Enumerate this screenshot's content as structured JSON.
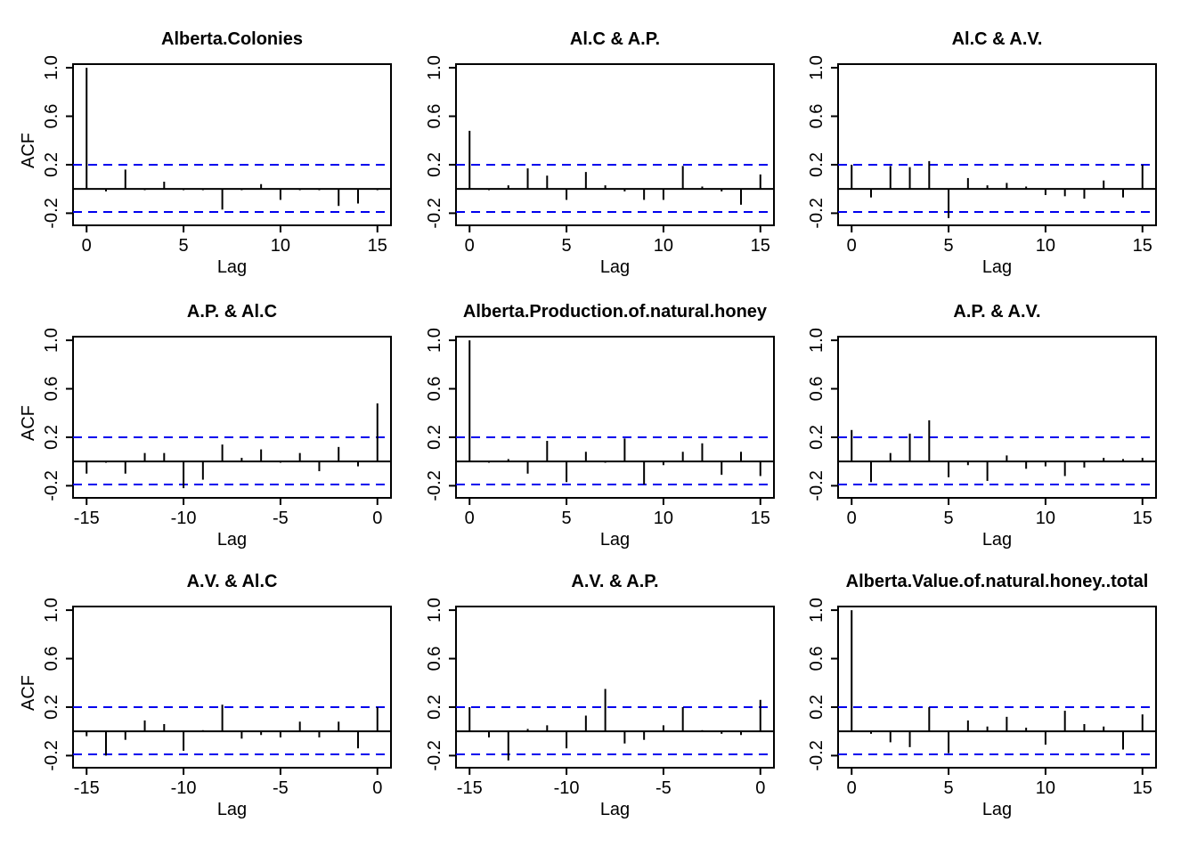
{
  "chart_data": [
    {
      "type": "bar",
      "title": "Alberta.Colonies",
      "xlabel": "Lag",
      "ylabel": "ACF",
      "xlim": [
        -0.7,
        15.7
      ],
      "ylim": [
        -0.3,
        1.03
      ],
      "x": [
        0,
        1,
        2,
        3,
        4,
        5,
        6,
        7,
        8,
        9,
        10,
        11,
        12,
        13,
        14,
        15
      ],
      "values": [
        1.0,
        -0.02,
        0.16,
        -0.01,
        0.06,
        -0.01,
        -0.01,
        -0.17,
        -0.01,
        0.04,
        -0.09,
        -0.01,
        -0.01,
        -0.14,
        -0.12,
        -0.01
      ],
      "ci": [
        0.2,
        -0.19
      ],
      "xticks": [
        "0",
        "5",
        "10",
        "15"
      ],
      "yticks": [
        "-0.2",
        "0.2",
        "0.6",
        "1.0"
      ]
    },
    {
      "type": "bar",
      "title": "Al.C & A.P.",
      "xlabel": "Lag",
      "ylabel": "",
      "xlim": [
        -0.7,
        15.7
      ],
      "ylim": [
        -0.3,
        1.03
      ],
      "x": [
        0,
        1,
        2,
        3,
        4,
        5,
        6,
        7,
        8,
        9,
        10,
        11,
        12,
        13,
        14,
        15
      ],
      "values": [
        0.48,
        -0.01,
        0.03,
        0.17,
        0.11,
        -0.09,
        0.14,
        0.03,
        -0.02,
        -0.09,
        -0.09,
        0.19,
        0.02,
        -0.02,
        -0.13,
        0.12
      ],
      "ci": [
        0.2,
        -0.19
      ],
      "xticks": [
        "0",
        "5",
        "10",
        "15"
      ],
      "yticks": [
        "-0.2",
        "0.2",
        "0.6",
        "1.0"
      ]
    },
    {
      "type": "bar",
      "title": "Al.C & A.V.",
      "xlabel": "Lag",
      "ylabel": "",
      "xlim": [
        -0.7,
        15.7
      ],
      "ylim": [
        -0.3,
        1.03
      ],
      "x": [
        0,
        1,
        2,
        3,
        4,
        5,
        6,
        7,
        8,
        9,
        10,
        11,
        12,
        13,
        14,
        15
      ],
      "values": [
        0.2,
        -0.07,
        0.19,
        0.18,
        0.23,
        -0.24,
        0.09,
        0.03,
        0.05,
        0.02,
        -0.05,
        -0.06,
        -0.08,
        0.07,
        -0.07,
        0.2
      ],
      "ci": [
        0.2,
        -0.19
      ],
      "xticks": [
        "0",
        "5",
        "10",
        "15"
      ],
      "yticks": [
        "-0.2",
        "0.2",
        "0.6",
        "1.0"
      ]
    },
    {
      "type": "bar",
      "title": "A.P. & Al.C",
      "xlabel": "Lag",
      "ylabel": "ACF",
      "xlim": [
        -15.7,
        0.7
      ],
      "ylim": [
        -0.3,
        1.03
      ],
      "x": [
        -15,
        -14,
        -13,
        -12,
        -11,
        -10,
        -9,
        -8,
        -7,
        -6,
        -5,
        -4,
        -3,
        -2,
        -1,
        0
      ],
      "values": [
        -0.1,
        -0.01,
        -0.1,
        0.07,
        0.07,
        -0.22,
        -0.15,
        0.14,
        0.03,
        0.1,
        -0.01,
        0.07,
        -0.08,
        0.12,
        -0.04,
        0.48
      ],
      "ci": [
        0.2,
        -0.19
      ],
      "xticks": [
        "-15",
        "-10",
        "-5",
        "0"
      ],
      "yticks": [
        "-0.2",
        "0.2",
        "0.6",
        "1.0"
      ]
    },
    {
      "type": "bar",
      "title": "Alberta.Production.of.natural.honey",
      "xlabel": "Lag",
      "ylabel": "",
      "xlim": [
        -0.7,
        15.7
      ],
      "ylim": [
        -0.3,
        1.03
      ],
      "x": [
        0,
        1,
        2,
        3,
        4,
        5,
        6,
        7,
        8,
        9,
        10,
        11,
        12,
        13,
        14,
        15
      ],
      "values": [
        1.0,
        -0.01,
        0.02,
        -0.1,
        0.17,
        -0.17,
        0.08,
        -0.01,
        0.19,
        -0.19,
        -0.03,
        0.08,
        0.15,
        -0.11,
        0.08,
        -0.12
      ],
      "ci": [
        0.2,
        -0.19
      ],
      "xticks": [
        "0",
        "5",
        "10",
        "15"
      ],
      "yticks": [
        "-0.2",
        "0.2",
        "0.6",
        "1.0"
      ]
    },
    {
      "type": "bar",
      "title": "A.P. & A.V.",
      "xlabel": "Lag",
      "ylabel": "",
      "xlim": [
        -0.7,
        15.7
      ],
      "ylim": [
        -0.3,
        1.03
      ],
      "x": [
        0,
        1,
        2,
        3,
        4,
        5,
        6,
        7,
        8,
        9,
        10,
        11,
        12,
        13,
        14,
        15
      ],
      "values": [
        0.26,
        -0.17,
        0.07,
        0.23,
        0.34,
        -0.13,
        -0.03,
        -0.16,
        0.05,
        -0.06,
        -0.04,
        -0.12,
        -0.05,
        0.03,
        0.02,
        0.03
      ],
      "ci": [
        0.2,
        -0.19
      ],
      "xticks": [
        "0",
        "5",
        "10",
        "15"
      ],
      "yticks": [
        "-0.2",
        "0.2",
        "0.6",
        "1.0"
      ]
    },
    {
      "type": "bar",
      "title": "A.V. & Al.C",
      "xlabel": "Lag",
      "ylabel": "ACF",
      "xlim": [
        -15.7,
        0.7
      ],
      "ylim": [
        -0.3,
        1.03
      ],
      "x": [
        -15,
        -14,
        -13,
        -12,
        -11,
        -10,
        -9,
        -8,
        -7,
        -6,
        -5,
        -4,
        -3,
        -2,
        -1,
        0
      ],
      "values": [
        -0.04,
        -0.2,
        -0.07,
        0.09,
        0.06,
        -0.16,
        0.01,
        0.22,
        -0.06,
        -0.03,
        -0.05,
        0.08,
        -0.05,
        0.08,
        -0.14,
        0.2
      ],
      "ci": [
        0.2,
        -0.19
      ],
      "xticks": [
        "-15",
        "-10",
        "-5",
        "0"
      ],
      "yticks": [
        "-0.2",
        "0.2",
        "0.6",
        "1.0"
      ]
    },
    {
      "type": "bar",
      "title": "A.V. & A.P.",
      "xlabel": "Lag",
      "ylabel": "",
      "xlim": [
        -15.7,
        0.7
      ],
      "ylim": [
        -0.3,
        1.03
      ],
      "x": [
        -15,
        -14,
        -13,
        -12,
        -11,
        -10,
        -9,
        -8,
        -7,
        -6,
        -5,
        -4,
        -3,
        -2,
        -1,
        0
      ],
      "values": [
        0.2,
        -0.05,
        -0.24,
        0.02,
        0.05,
        -0.14,
        0.13,
        0.35,
        -0.1,
        -0.07,
        0.05,
        0.2,
        0.01,
        -0.02,
        -0.03,
        0.26
      ],
      "ci": [
        0.2,
        -0.19
      ],
      "xticks": [
        "-15",
        "-10",
        "-5",
        "0"
      ],
      "yticks": [
        "-0.2",
        "0.2",
        "0.6",
        "1.0"
      ]
    },
    {
      "type": "bar",
      "title": "Alberta.Value.of.natural.honey..total",
      "xlabel": "Lag",
      "ylabel": "",
      "xlim": [
        -0.7,
        15.7
      ],
      "ylim": [
        -0.3,
        1.03
      ],
      "x": [
        0,
        1,
        2,
        3,
        4,
        5,
        6,
        7,
        8,
        9,
        10,
        11,
        12,
        13,
        14,
        15
      ],
      "values": [
        1.0,
        -0.02,
        -0.09,
        -0.13,
        0.2,
        -0.18,
        0.09,
        0.04,
        0.12,
        0.03,
        -0.11,
        0.17,
        0.06,
        0.04,
        -0.15,
        0.14
      ],
      "ci": [
        0.2,
        -0.19
      ],
      "xticks": [
        "0",
        "5",
        "10",
        "15"
      ],
      "yticks": [
        "-0.2",
        "0.2",
        "0.6",
        "1.0"
      ]
    }
  ]
}
